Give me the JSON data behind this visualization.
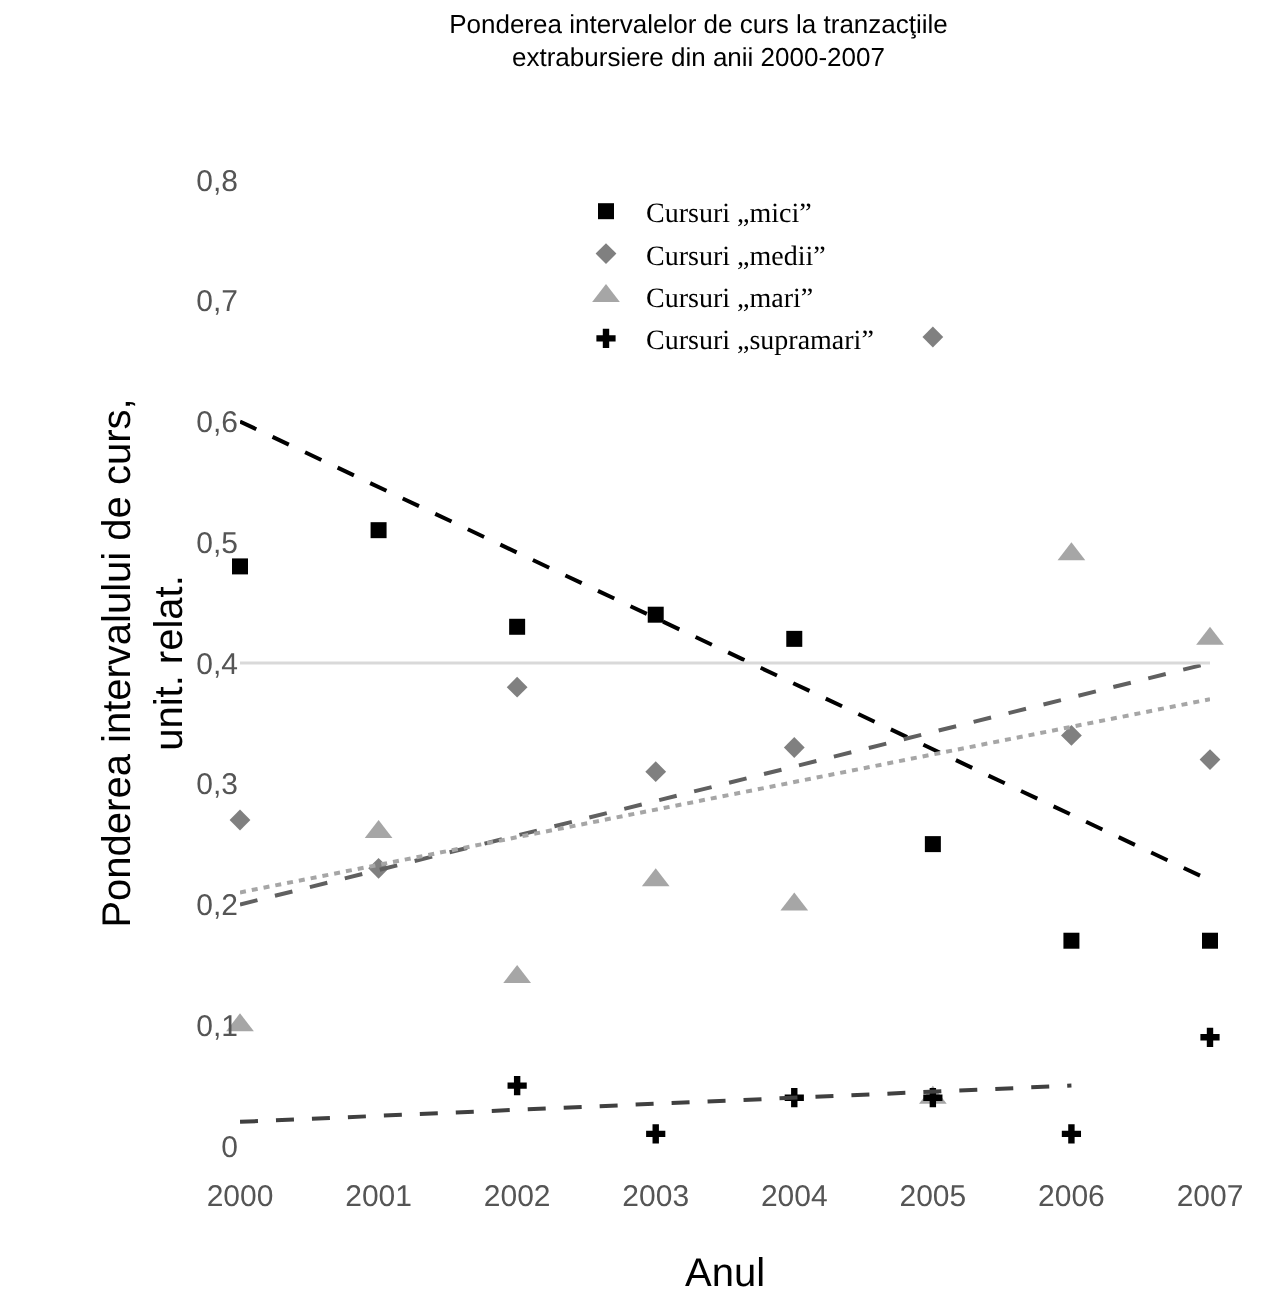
{
  "chart_data": {
    "type": "scatter",
    "title": "Ponderea intervalelor de curs la tranzacţiile\nextrabursiere din anii 2000-2007",
    "xlabel": "Anul",
    "ylabel": "Ponderea intervalului de curs,\nunit. relat.",
    "x": [
      2000,
      2001,
      2002,
      2003,
      2004,
      2005,
      2006,
      2007
    ],
    "xlim": [
      2000,
      2007
    ],
    "xticks": [
      2000,
      2001,
      2002,
      2003,
      2004,
      2005,
      2006,
      2007
    ],
    "ylim": [
      0,
      0.8
    ],
    "yticks": [
      0,
      {
        "value": 0.1,
        "label": "0,1"
      },
      {
        "value": 0.2,
        "label": "0,2"
      },
      {
        "value": 0.3,
        "label": "0,3"
      },
      {
        "value": 0.4,
        "label": "0,4"
      },
      {
        "value": 0.5,
        "label": "0,5"
      },
      {
        "value": 0.6,
        "label": "0,6"
      },
      {
        "value": 0.7,
        "label": "0,7"
      },
      {
        "value": 0.8,
        "label": "0,8"
      }
    ],
    "grid": false,
    "legend": "top",
    "ref_lines": [
      {
        "axis": "y",
        "value": 0.4,
        "color": "#d9d9d9"
      }
    ],
    "series": [
      {
        "name": "Cursuri „mici”",
        "marker": "square",
        "color": "#000000",
        "values": [
          0.48,
          0.51,
          0.43,
          0.44,
          0.42,
          0.25,
          0.17,
          0.17
        ]
      },
      {
        "name": "Cursuri „medii”",
        "marker": "diamond",
        "color": "#808080",
        "values": [
          0.27,
          0.23,
          0.38,
          0.31,
          0.33,
          0.67,
          0.34,
          0.32
        ]
      },
      {
        "name": "Cursuri „mari”",
        "marker": "triangle",
        "color": "#a6a6a6",
        "values": [
          0.1,
          0.26,
          0.14,
          0.22,
          0.2,
          0.04,
          0.49,
          0.42
        ]
      },
      {
        "name": "Cursuri „supramari”",
        "marker": "cross",
        "color": "#000000",
        "values": [
          null,
          null,
          0.05,
          0.01,
          0.04,
          0.04,
          0.01,
          0.09
        ]
      },
      {
        "type": "line",
        "line_style": "dashed",
        "color": "#000000",
        "x": [
          2000,
          2007
        ],
        "values": [
          0.6,
          0.22
        ]
      },
      {
        "type": "line",
        "line_style": "dashed",
        "color": "#606060",
        "x": [
          2000,
          2007
        ],
        "values": [
          0.2,
          0.4
        ]
      },
      {
        "type": "line",
        "line_style": "dotted",
        "color": "#a6a6a6",
        "x": [
          2000,
          2007
        ],
        "values": [
          0.21,
          0.37
        ]
      },
      {
        "type": "line",
        "line_style": "dashed",
        "color": "#404040",
        "x": [
          2000,
          2006
        ],
        "values": [
          0.02,
          0.05
        ]
      }
    ]
  }
}
